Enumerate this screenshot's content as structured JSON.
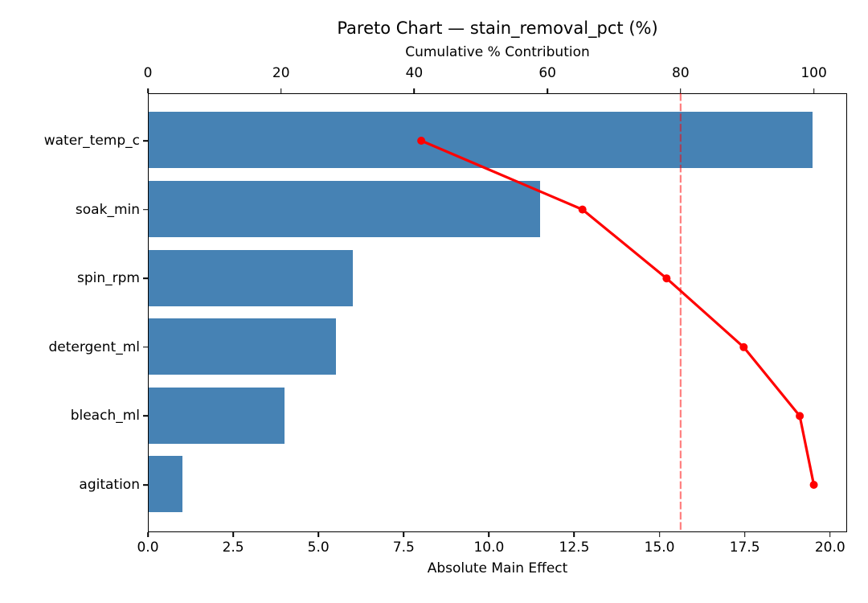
{
  "chart_data": {
    "type": "bar",
    "subtype": "pareto",
    "orientation": "horizontal",
    "title": "Pareto Chart — stain_removal_pct (%)",
    "xlabel_top": "Cumulative % Contribution",
    "xlabel_bottom": "Absolute Main Effect",
    "categories": [
      "water_temp_c",
      "soak_min",
      "spin_rpm",
      "detergent_ml",
      "bleach_ml",
      "agitation"
    ],
    "series": [
      {
        "name": "Absolute Main Effect",
        "type": "bar",
        "axis": "bottom",
        "values": [
          19.5,
          11.5,
          6.0,
          5.5,
          4.0,
          1.0
        ]
      },
      {
        "name": "Cumulative % Contribution",
        "type": "line",
        "axis": "top",
        "values": [
          41.05,
          65.26,
          77.89,
          89.47,
          97.89,
          100.0
        ]
      }
    ],
    "threshold_line": {
      "value": 80,
      "axis": "top",
      "style": "dashed"
    },
    "xlim_bottom": [
      0,
      20.5
    ],
    "xlim_top": [
      0,
      105
    ],
    "xticks_bottom": {
      "values": [
        0,
        2.5,
        5,
        7.5,
        10,
        12.5,
        15,
        17.5,
        20
      ],
      "labels": [
        "0.0",
        "2.5",
        "5.0",
        "7.5",
        "10.0",
        "12.5",
        "15.0",
        "17.5",
        "20.0"
      ]
    },
    "xticks_top": {
      "values": [
        0,
        20,
        40,
        60,
        80,
        100
      ],
      "labels": [
        "0",
        "20",
        "40",
        "60",
        "80",
        "100"
      ]
    },
    "grid": false,
    "legend": "none",
    "colors": {
      "bar": "#4682B4",
      "line": "#FF0000",
      "marker": "#FF0000",
      "threshold": "#FF0000",
      "threshold_opacity": 0.5,
      "text": "#000000",
      "background": "#FFFFFF"
    }
  }
}
